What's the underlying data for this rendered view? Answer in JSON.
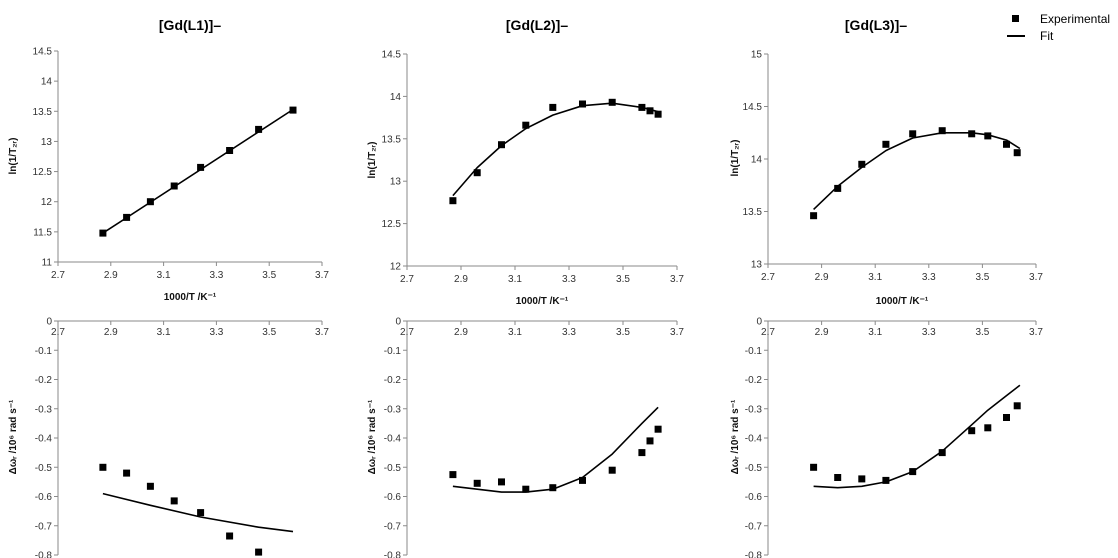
{
  "legend": {
    "experimental": "Experimental",
    "fit": "Fit"
  },
  "chart_data": [
    {
      "type": "scatter",
      "title": "[Gd(L1)]–",
      "xlabel": "1000/T /K⁻¹",
      "ylabel": "ln(1/T₂ᵣ)",
      "xlim": [
        2.7,
        3.7
      ],
      "ylim": [
        11,
        14.5
      ],
      "xticks": [
        "2.7",
        "2.9",
        "3.1",
        "3.3",
        "3.5",
        "3.7"
      ],
      "yticks": [
        "11",
        "11.5",
        "12",
        "12.5",
        "13",
        "13.5",
        "14",
        "14.5"
      ],
      "series": [
        {
          "name": "Experimental",
          "x": [
            2.87,
            2.96,
            3.05,
            3.14,
            3.24,
            3.35,
            3.46,
            3.59
          ],
          "y": [
            11.48,
            11.74,
            12.0,
            12.26,
            12.57,
            12.85,
            13.2,
            13.52
          ]
        },
        {
          "name": "Fit",
          "x": [
            2.87,
            3.59
          ],
          "y": [
            11.48,
            13.53
          ]
        }
      ]
    },
    {
      "type": "scatter",
      "title": "[Gd(L2)]–",
      "xlabel": "1000/T /K⁻¹",
      "ylabel": "ln(1/T₂ᵣ)",
      "xlim": [
        2.7,
        3.7
      ],
      "ylim": [
        12,
        14.5
      ],
      "xticks": [
        "2.7",
        "2.9",
        "3.1",
        "3.3",
        "3.5",
        "3.7"
      ],
      "yticks": [
        "12",
        "12.5",
        "13",
        "13.5",
        "14",
        "14.5"
      ],
      "series": [
        {
          "name": "Experimental",
          "x": [
            2.87,
            2.96,
            3.05,
            3.14,
            3.24,
            3.35,
            3.46,
            3.57,
            3.6,
            3.63
          ],
          "y": [
            12.77,
            13.1,
            13.43,
            13.66,
            13.87,
            13.91,
            13.93,
            13.87,
            13.83,
            13.79
          ]
        },
        {
          "name": "Fit",
          "x": [
            2.87,
            2.96,
            3.05,
            3.14,
            3.24,
            3.35,
            3.46,
            3.57,
            3.63
          ],
          "y": [
            12.83,
            13.16,
            13.42,
            13.62,
            13.78,
            13.89,
            13.92,
            13.87,
            13.82
          ]
        }
      ]
    },
    {
      "type": "scatter",
      "title": "[Gd(L3)]–",
      "xlabel": "1000/T /K⁻¹",
      "ylabel": "ln(1/T₂ᵣ)",
      "xlim": [
        2.7,
        3.7
      ],
      "ylim": [
        13,
        15
      ],
      "xticks": [
        "2.7",
        "2.9",
        "3.1",
        "3.3",
        "3.5",
        "3.7"
      ],
      "yticks": [
        "13",
        "13.5",
        "14",
        "14.5",
        "15"
      ],
      "series": [
        {
          "name": "Experimental",
          "x": [
            2.87,
            2.96,
            3.05,
            3.14,
            3.24,
            3.35,
            3.46,
            3.52,
            3.59,
            3.63
          ],
          "y": [
            13.46,
            13.72,
            13.95,
            14.14,
            14.24,
            14.27,
            14.24,
            14.22,
            14.14,
            14.06
          ]
        },
        {
          "name": "Fit",
          "x": [
            2.87,
            2.96,
            3.05,
            3.14,
            3.24,
            3.35,
            3.46,
            3.52,
            3.59,
            3.64
          ],
          "y": [
            13.52,
            13.74,
            13.92,
            14.08,
            14.2,
            14.25,
            14.25,
            14.23,
            14.18,
            14.1
          ]
        }
      ]
    },
    {
      "type": "scatter",
      "xlabel": "",
      "ylabel": "Δωᵣ /10⁶ rad s⁻¹",
      "xlim": [
        2.7,
        3.7
      ],
      "ylim": [
        -0.8,
        0
      ],
      "xticks": [
        "2.7",
        "2.9",
        "3.1",
        "3.3",
        "3.5",
        "3.7"
      ],
      "yticks": [
        "-0.8",
        "-0.7",
        "-0.6",
        "-0.5",
        "-0.4",
        "-0.3",
        "-0.2",
        "-0.1",
        "0"
      ],
      "series": [
        {
          "name": "Experimental",
          "x": [
            2.87,
            2.96,
            3.05,
            3.14,
            3.24,
            3.35,
            3.46
          ],
          "y": [
            -0.5,
            -0.52,
            -0.565,
            -0.615,
            -0.655,
            -0.735,
            -0.79
          ]
        },
        {
          "name": "Fit",
          "x": [
            2.87,
            3.05,
            3.24,
            3.46,
            3.59
          ],
          "y": [
            -0.59,
            -0.63,
            -0.67,
            -0.705,
            -0.72
          ]
        }
      ]
    },
    {
      "type": "scatter",
      "xlabel": "",
      "ylabel": "Δωᵣ /10⁶ rad s⁻¹",
      "xlim": [
        2.7,
        3.7
      ],
      "ylim": [
        -0.8,
        0
      ],
      "xticks": [
        "2.7",
        "2.9",
        "3.1",
        "3.3",
        "3.5",
        "3.7"
      ],
      "yticks": [
        "-0.8",
        "-0.7",
        "-0.6",
        "-0.5",
        "-0.4",
        "-0.3",
        "-0.2",
        "-0.1",
        "0"
      ],
      "series": [
        {
          "name": "Experimental",
          "x": [
            2.87,
            2.96,
            3.05,
            3.14,
            3.24,
            3.35,
            3.46,
            3.57,
            3.6,
            3.63
          ],
          "y": [
            -0.525,
            -0.555,
            -0.55,
            -0.575,
            -0.57,
            -0.545,
            -0.51,
            -0.45,
            -0.41,
            -0.37
          ]
        },
        {
          "name": "Fit",
          "x": [
            2.87,
            2.96,
            3.05,
            3.14,
            3.24,
            3.35,
            3.46,
            3.57,
            3.63
          ],
          "y": [
            -0.565,
            -0.575,
            -0.585,
            -0.585,
            -0.575,
            -0.535,
            -0.455,
            -0.35,
            -0.295
          ]
        }
      ]
    },
    {
      "type": "scatter",
      "xlabel": "",
      "ylabel": "Δωᵣ /10⁶ rad s⁻¹",
      "xlim": [
        2.7,
        3.7
      ],
      "ylim": [
        -0.8,
        0
      ],
      "xticks": [
        "2.7",
        "2.9",
        "3.1",
        "3.3",
        "3.5",
        "3.7"
      ],
      "yticks": [
        "-0.8",
        "-0.7",
        "-0.6",
        "-0.5",
        "-0.4",
        "-0.3",
        "-0.2",
        "-0.1",
        "0"
      ],
      "series": [
        {
          "name": "Experimental",
          "x": [
            2.87,
            2.96,
            3.05,
            3.14,
            3.24,
            3.35,
            3.46,
            3.52,
            3.59,
            3.63
          ],
          "y": [
            -0.5,
            -0.535,
            -0.54,
            -0.545,
            -0.515,
            -0.45,
            -0.375,
            -0.365,
            -0.33,
            -0.29
          ]
        },
        {
          "name": "Fit",
          "x": [
            2.87,
            2.96,
            3.05,
            3.14,
            3.24,
            3.35,
            3.46,
            3.52,
            3.59,
            3.64
          ],
          "y": [
            -0.565,
            -0.57,
            -0.565,
            -0.55,
            -0.515,
            -0.445,
            -0.355,
            -0.305,
            -0.255,
            -0.22
          ]
        }
      ]
    }
  ]
}
